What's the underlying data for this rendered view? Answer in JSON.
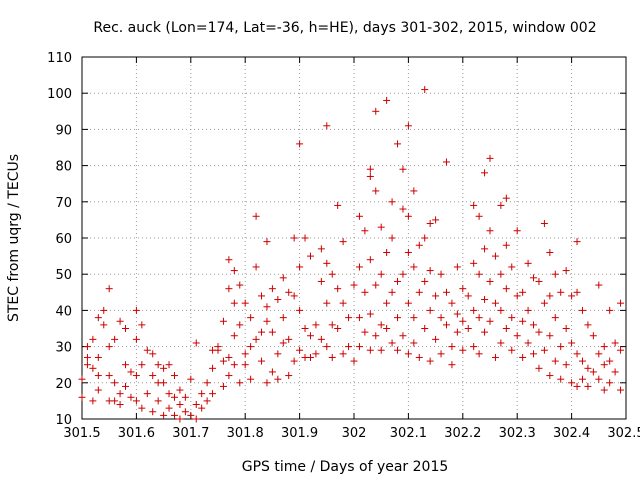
{
  "chart_data": {
    "type": "scatter",
    "title": "Rec. auck (Lon=174, Lat=-36, h=HE), days 301-302, 2015, window 002",
    "xlabel": "GPS time / Days of year 2015",
    "ylabel": "STEC from uqrg / TECUs",
    "xlim": [
      301.5,
      302.5
    ],
    "ylim": [
      10,
      110
    ],
    "x_ticks": [
      301.5,
      301.6,
      301.7,
      301.8,
      301.9,
      302,
      302.1,
      302.2,
      302.3,
      302.4,
      302.5
    ],
    "x_tick_labels": [
      "301.5",
      "301.6",
      "301.7",
      "301.8",
      "301.9",
      "302",
      "302.1",
      "302.2",
      "302.3",
      "302.4",
      "302.5"
    ],
    "y_ticks": [
      10,
      20,
      30,
      40,
      50,
      60,
      70,
      80,
      90,
      100,
      110
    ],
    "y_tick_labels": [
      "10",
      "20",
      "30",
      "40",
      "50",
      "60",
      "70",
      "80",
      "90",
      "100",
      "110"
    ],
    "grid": true,
    "marker": "+",
    "marker_color": "#cc0000",
    "series": [
      {
        "name": "STEC",
        "points": [
          [
            301.5,
            21
          ],
          [
            301.5,
            16
          ],
          [
            301.51,
            27
          ],
          [
            301.51,
            25
          ],
          [
            301.51,
            30
          ],
          [
            301.52,
            32
          ],
          [
            301.52,
            24
          ],
          [
            301.52,
            15
          ],
          [
            301.53,
            18
          ],
          [
            301.53,
            27
          ],
          [
            301.53,
            22
          ],
          [
            301.53,
            38
          ],
          [
            301.54,
            36
          ],
          [
            301.54,
            40
          ],
          [
            301.55,
            46
          ],
          [
            301.55,
            30
          ],
          [
            301.55,
            22
          ],
          [
            301.55,
            15
          ],
          [
            301.56,
            15
          ],
          [
            301.56,
            20
          ],
          [
            301.56,
            32
          ],
          [
            301.57,
            37
          ],
          [
            301.57,
            17
          ],
          [
            301.57,
            14
          ],
          [
            301.58,
            35
          ],
          [
            301.58,
            25
          ],
          [
            301.58,
            19
          ],
          [
            301.59,
            23
          ],
          [
            301.59,
            16
          ],
          [
            301.6,
            40
          ],
          [
            301.6,
            32
          ],
          [
            301.6,
            22
          ],
          [
            301.6,
            15
          ],
          [
            301.61,
            25
          ],
          [
            301.61,
            13
          ],
          [
            301.61,
            36
          ],
          [
            301.62,
            29
          ],
          [
            301.62,
            17
          ],
          [
            301.63,
            28
          ],
          [
            301.63,
            22
          ],
          [
            301.63,
            12
          ],
          [
            301.64,
            20
          ],
          [
            301.64,
            25
          ],
          [
            301.64,
            15
          ],
          [
            301.65,
            24
          ],
          [
            301.65,
            11
          ],
          [
            301.65,
            20
          ],
          [
            301.66,
            25
          ],
          [
            301.66,
            17
          ],
          [
            301.66,
            13
          ],
          [
            301.67,
            16
          ],
          [
            301.67,
            22
          ],
          [
            301.67,
            11
          ],
          [
            301.68,
            18
          ],
          [
            301.68,
            14
          ],
          [
            301.68,
            10
          ],
          [
            301.69,
            16
          ],
          [
            301.69,
            12
          ],
          [
            301.7,
            11
          ],
          [
            301.7,
            21
          ],
          [
            301.71,
            14
          ],
          [
            301.71,
            31
          ],
          [
            301.71,
            10
          ],
          [
            301.72,
            17
          ],
          [
            301.72,
            13
          ],
          [
            301.73,
            20
          ],
          [
            301.73,
            15
          ],
          [
            301.74,
            29
          ],
          [
            301.74,
            24
          ],
          [
            301.74,
            17
          ],
          [
            301.75,
            29
          ],
          [
            301.75,
            30
          ],
          [
            301.76,
            19
          ],
          [
            301.76,
            26
          ],
          [
            301.76,
            37
          ],
          [
            301.77,
            22
          ],
          [
            301.77,
            54
          ],
          [
            301.77,
            46
          ],
          [
            301.77,
            27
          ],
          [
            301.78,
            51
          ],
          [
            301.78,
            42
          ],
          [
            301.78,
            33
          ],
          [
            301.78,
            25
          ],
          [
            301.79,
            47
          ],
          [
            301.79,
            36
          ],
          [
            301.79,
            20
          ],
          [
            301.8,
            28
          ],
          [
            301.8,
            42
          ],
          [
            301.8,
            25
          ],
          [
            301.81,
            38
          ],
          [
            301.81,
            30
          ],
          [
            301.81,
            21
          ],
          [
            301.82,
            66
          ],
          [
            301.82,
            52
          ],
          [
            301.82,
            32
          ],
          [
            301.83,
            34
          ],
          [
            301.83,
            44
          ],
          [
            301.83,
            26
          ],
          [
            301.84,
            59
          ],
          [
            301.84,
            41
          ],
          [
            301.84,
            37
          ],
          [
            301.84,
            20
          ],
          [
            301.85,
            46
          ],
          [
            301.85,
            34
          ],
          [
            301.85,
            23
          ],
          [
            301.86,
            43
          ],
          [
            301.86,
            28
          ],
          [
            301.86,
            21
          ],
          [
            301.87,
            49
          ],
          [
            301.87,
            38
          ],
          [
            301.87,
            31
          ],
          [
            301.88,
            45
          ],
          [
            301.88,
            32
          ],
          [
            301.88,
            22
          ],
          [
            301.89,
            60
          ],
          [
            301.89,
            44
          ],
          [
            301.89,
            26
          ],
          [
            301.9,
            86
          ],
          [
            301.9,
            52
          ],
          [
            301.9,
            40
          ],
          [
            301.9,
            29
          ],
          [
            301.91,
            35
          ],
          [
            301.91,
            60
          ],
          [
            301.91,
            27
          ],
          [
            301.92,
            55
          ],
          [
            301.92,
            33
          ],
          [
            301.92,
            27
          ],
          [
            301.93,
            36
          ],
          [
            301.93,
            28
          ],
          [
            301.94,
            57
          ],
          [
            301.94,
            48
          ],
          [
            301.94,
            32
          ],
          [
            301.95,
            91
          ],
          [
            301.95,
            53
          ],
          [
            301.95,
            42
          ],
          [
            301.95,
            30
          ],
          [
            301.96,
            50
          ],
          [
            301.96,
            36
          ],
          [
            301.96,
            27
          ],
          [
            301.97,
            69
          ],
          [
            301.97,
            46
          ],
          [
            301.97,
            35
          ],
          [
            301.98,
            59
          ],
          [
            301.98,
            42
          ],
          [
            301.98,
            28
          ],
          [
            301.99,
            38
          ],
          [
            301.99,
            30
          ],
          [
            302.0,
            47
          ],
          [
            302.0,
            26
          ],
          [
            302.01,
            66
          ],
          [
            302.01,
            52
          ],
          [
            302.01,
            38
          ],
          [
            302.01,
            30
          ],
          [
            302.02,
            62
          ],
          [
            302.02,
            45
          ],
          [
            302.02,
            34
          ],
          [
            302.03,
            79
          ],
          [
            302.03,
            77
          ],
          [
            302.03,
            54
          ],
          [
            302.03,
            39
          ],
          [
            302.03,
            29
          ],
          [
            302.04,
            95
          ],
          [
            302.04,
            73
          ],
          [
            302.04,
            47
          ],
          [
            302.04,
            33
          ],
          [
            302.05,
            63
          ],
          [
            302.05,
            50
          ],
          [
            302.05,
            36
          ],
          [
            302.05,
            29
          ],
          [
            302.06,
            98
          ],
          [
            302.06,
            56
          ],
          [
            302.06,
            42
          ],
          [
            302.06,
            35
          ],
          [
            302.07,
            70
          ],
          [
            302.07,
            60
          ],
          [
            302.07,
            45
          ],
          [
            302.07,
            31
          ],
          [
            302.08,
            86
          ],
          [
            302.08,
            48
          ],
          [
            302.08,
            38
          ],
          [
            302.08,
            29
          ],
          [
            302.09,
            79
          ],
          [
            302.09,
            68
          ],
          [
            302.09,
            50
          ],
          [
            302.09,
            33
          ],
          [
            302.1,
            91
          ],
          [
            302.1,
            66
          ],
          [
            302.1,
            56
          ],
          [
            302.1,
            42
          ],
          [
            302.1,
            28
          ],
          [
            302.11,
            73
          ],
          [
            302.11,
            52
          ],
          [
            302.11,
            38
          ],
          [
            302.11,
            31
          ],
          [
            302.12,
            58
          ],
          [
            302.12,
            45
          ],
          [
            302.12,
            27
          ],
          [
            302.13,
            101
          ],
          [
            302.13,
            60
          ],
          [
            302.13,
            48
          ],
          [
            302.13,
            35
          ],
          [
            302.14,
            64
          ],
          [
            302.14,
            51
          ],
          [
            302.14,
            40
          ],
          [
            302.14,
            26
          ],
          [
            302.15,
            65
          ],
          [
            302.15,
            44
          ],
          [
            302.15,
            32
          ],
          [
            302.16,
            50
          ],
          [
            302.16,
            38
          ],
          [
            302.16,
            28
          ],
          [
            302.17,
            81
          ],
          [
            302.17,
            45
          ],
          [
            302.17,
            36
          ],
          [
            302.18,
            42
          ],
          [
            302.18,
            30
          ],
          [
            302.18,
            25
          ],
          [
            302.19,
            52
          ],
          [
            302.19,
            39
          ],
          [
            302.19,
            34
          ],
          [
            302.2,
            46
          ],
          [
            302.2,
            37
          ],
          [
            302.2,
            29
          ],
          [
            302.21,
            44
          ],
          [
            302.21,
            35
          ],
          [
            302.22,
            69
          ],
          [
            302.22,
            53
          ],
          [
            302.22,
            40
          ],
          [
            302.22,
            30
          ],
          [
            302.23,
            66
          ],
          [
            302.23,
            50
          ],
          [
            302.23,
            38
          ],
          [
            302.23,
            28
          ],
          [
            302.24,
            78
          ],
          [
            302.24,
            57
          ],
          [
            302.24,
            43
          ],
          [
            302.24,
            34
          ],
          [
            302.25,
            82
          ],
          [
            302.25,
            62
          ],
          [
            302.25,
            48
          ],
          [
            302.25,
            37
          ],
          [
            302.26,
            55
          ],
          [
            302.26,
            42
          ],
          [
            302.26,
            27
          ],
          [
            302.27,
            69
          ],
          [
            302.27,
            50
          ],
          [
            302.27,
            40
          ],
          [
            302.27,
            31
          ],
          [
            302.28,
            71
          ],
          [
            302.28,
            58
          ],
          [
            302.28,
            46
          ],
          [
            302.28,
            35
          ],
          [
            302.29,
            52
          ],
          [
            302.29,
            38
          ],
          [
            302.29,
            29
          ],
          [
            302.3,
            62
          ],
          [
            302.3,
            44
          ],
          [
            302.3,
            33
          ],
          [
            302.31,
            45
          ],
          [
            302.31,
            37
          ],
          [
            302.31,
            27
          ],
          [
            302.32,
            53
          ],
          [
            302.32,
            40
          ],
          [
            302.32,
            31
          ],
          [
            302.33,
            49
          ],
          [
            302.33,
            36
          ],
          [
            302.33,
            28
          ],
          [
            302.34,
            48
          ],
          [
            302.34,
            34
          ],
          [
            302.34,
            24
          ],
          [
            302.35,
            64
          ],
          [
            302.35,
            42
          ],
          [
            302.35,
            29
          ],
          [
            302.36,
            56
          ],
          [
            302.36,
            44
          ],
          [
            302.36,
            33
          ],
          [
            302.36,
            22
          ],
          [
            302.37,
            50
          ],
          [
            302.37,
            38
          ],
          [
            302.37,
            26
          ],
          [
            302.38,
            45
          ],
          [
            302.38,
            30
          ],
          [
            302.38,
            21
          ],
          [
            302.39,
            51
          ],
          [
            302.39,
            35
          ],
          [
            302.39,
            25
          ],
          [
            302.4,
            44
          ],
          [
            302.4,
            31
          ],
          [
            302.4,
            20
          ],
          [
            302.41,
            59
          ],
          [
            302.41,
            45
          ],
          [
            302.41,
            28
          ],
          [
            302.41,
            19
          ],
          [
            302.42,
            40
          ],
          [
            302.42,
            26
          ],
          [
            302.42,
            21
          ],
          [
            302.43,
            36
          ],
          [
            302.43,
            24
          ],
          [
            302.43,
            19
          ],
          [
            302.44,
            33
          ],
          [
            302.44,
            23
          ],
          [
            302.45,
            47
          ],
          [
            302.45,
            28
          ],
          [
            302.45,
            21
          ],
          [
            302.46,
            30
          ],
          [
            302.46,
            25
          ],
          [
            302.46,
            18
          ],
          [
            302.47,
            40
          ],
          [
            302.47,
            26
          ],
          [
            302.47,
            20
          ],
          [
            302.48,
            31
          ],
          [
            302.48,
            23
          ],
          [
            302.49,
            42
          ],
          [
            302.49,
            29
          ],
          [
            302.49,
            18
          ]
        ]
      }
    ]
  }
}
